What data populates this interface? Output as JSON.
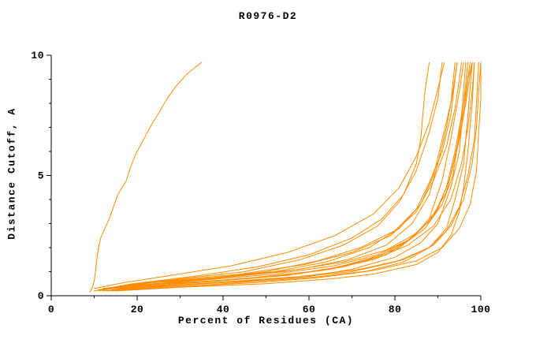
{
  "page": {
    "background": "#ffffff"
  },
  "chart_data": {
    "type": "line",
    "title": "R0976-D2",
    "xlabel": "Percent of Residues (CA)",
    "ylabel": "Distance Cutoff, A",
    "xlim": [
      0,
      100
    ],
    "ylim": [
      0,
      10
    ],
    "x_major_ticks": [
      0,
      20,
      40,
      60,
      80,
      100
    ],
    "x_minor_ticks": [
      10,
      30,
      50,
      70,
      90
    ],
    "y_major_ticks": [
      0,
      5,
      10
    ],
    "y_minor_ticks": [
      1,
      2,
      3,
      4,
      6,
      7,
      8,
      9
    ],
    "grid": false,
    "legend": "none",
    "line_color": "#ff8c00",
    "axis_color": "#000000",
    "series": [
      {
        "points": [
          [
            9,
            0.15
          ],
          [
            9.5,
            0.3
          ],
          [
            10,
            0.6
          ],
          [
            10.3,
            1.0
          ],
          [
            10.6,
            1.5
          ],
          [
            11,
            2.0
          ],
          [
            11.5,
            2.4
          ],
          [
            12,
            2.6
          ],
          [
            12.5,
            2.8
          ],
          [
            13.5,
            3.2
          ],
          [
            14.5,
            3.7
          ],
          [
            15.5,
            4.2
          ],
          [
            16.5,
            4.5
          ],
          [
            17.5,
            4.8
          ],
          [
            18,
            5.1
          ],
          [
            19,
            5.6
          ],
          [
            20,
            6.0
          ],
          [
            21.5,
            6.5
          ],
          [
            23,
            7.0
          ],
          [
            25,
            7.6
          ],
          [
            27,
            8.2
          ],
          [
            29,
            8.7
          ],
          [
            31.5,
            9.2
          ],
          [
            33.5,
            9.5
          ],
          [
            35,
            9.7
          ]
        ]
      },
      {
        "points": [
          [
            11,
            0.25
          ],
          [
            19,
            0.5
          ],
          [
            33,
            0.8
          ],
          [
            48,
            1.2
          ],
          [
            60,
            1.7
          ],
          [
            70,
            2.4
          ],
          [
            77,
            3.2
          ],
          [
            82,
            4.2
          ],
          [
            85,
            5.5
          ],
          [
            86,
            6.5
          ],
          [
            86.5,
            7.5
          ],
          [
            87,
            8.5
          ],
          [
            88,
            9.7
          ]
        ]
      },
      {
        "points": [
          [
            10,
            0.2
          ],
          [
            18,
            0.45
          ],
          [
            30,
            0.7
          ],
          [
            45,
            1.0
          ],
          [
            58,
            1.5
          ],
          [
            68,
            2.1
          ],
          [
            76,
            2.9
          ],
          [
            81,
            3.9
          ],
          [
            85,
            5.2
          ],
          [
            88,
            6.8
          ],
          [
            90,
            8.2
          ],
          [
            91,
            9.7
          ]
        ]
      },
      {
        "points": [
          [
            10,
            0.3
          ],
          [
            17,
            0.55
          ],
          [
            28,
            0.85
          ],
          [
            42,
            1.25
          ],
          [
            55,
            1.8
          ],
          [
            66,
            2.5
          ],
          [
            75,
            3.4
          ],
          [
            81,
            4.5
          ],
          [
            85,
            5.8
          ],
          [
            88,
            7.2
          ],
          [
            90,
            8.6
          ],
          [
            91.5,
            9.7
          ]
        ]
      },
      {
        "points": [
          [
            11,
            0.2
          ],
          [
            20,
            0.5
          ],
          [
            35,
            0.7
          ],
          [
            52,
            1.0
          ],
          [
            64,
            1.4
          ],
          [
            74,
            2.0
          ],
          [
            81,
            2.8
          ],
          [
            86,
            3.8
          ],
          [
            89,
            5.0
          ],
          [
            91,
            6.5
          ],
          [
            93,
            8.0
          ],
          [
            94,
            9.7
          ]
        ]
      },
      {
        "points": [
          [
            11,
            0.25
          ],
          [
            21,
            0.45
          ],
          [
            36,
            0.7
          ],
          [
            50,
            1.0
          ],
          [
            62,
            1.45
          ],
          [
            72,
            2.0
          ],
          [
            80,
            2.7
          ],
          [
            85,
            3.6
          ],
          [
            88,
            4.7
          ],
          [
            91,
            6.0
          ],
          [
            93,
            7.5
          ],
          [
            94,
            9.0
          ],
          [
            94.5,
            9.7
          ]
        ]
      },
      {
        "points": [
          [
            12,
            0.3
          ],
          [
            24,
            0.55
          ],
          [
            42,
            0.8
          ],
          [
            58,
            1.1
          ],
          [
            69,
            1.5
          ],
          [
            78,
            2.1
          ],
          [
            84,
            3.0
          ],
          [
            88,
            4.2
          ],
          [
            90,
            5.5
          ],
          [
            92,
            7.0
          ],
          [
            93.5,
            8.5
          ],
          [
            94.5,
            9.7
          ]
        ]
      },
      {
        "points": [
          [
            12,
            0.2
          ],
          [
            23,
            0.4
          ],
          [
            38,
            0.6
          ],
          [
            55,
            0.85
          ],
          [
            67,
            1.2
          ],
          [
            77,
            1.7
          ],
          [
            84,
            2.4
          ],
          [
            89,
            3.3
          ],
          [
            92,
            4.5
          ],
          [
            94,
            6.0
          ],
          [
            95.5,
            7.5
          ],
          [
            96.5,
            9.7
          ]
        ]
      },
      {
        "points": [
          [
            12,
            0.25
          ],
          [
            22,
            0.45
          ],
          [
            40,
            0.65
          ],
          [
            57,
            0.9
          ],
          [
            68,
            1.2
          ],
          [
            78,
            1.7
          ],
          [
            84,
            2.4
          ],
          [
            88,
            3.2
          ],
          [
            91,
            4.8
          ],
          [
            93,
            6.5
          ],
          [
            95,
            8.5
          ],
          [
            96,
            9.7
          ]
        ]
      },
      {
        "points": [
          [
            13,
            0.2
          ],
          [
            25,
            0.4
          ],
          [
            45,
            0.6
          ],
          [
            60,
            0.8
          ],
          [
            70,
            1.1
          ],
          [
            80,
            1.6
          ],
          [
            86,
            2.2
          ],
          [
            90,
            3.0
          ],
          [
            93,
            4.5
          ],
          [
            95,
            6.0
          ],
          [
            96,
            8.0
          ],
          [
            97,
            9.7
          ]
        ]
      },
      {
        "points": [
          [
            13,
            0.3
          ],
          [
            26,
            0.6
          ],
          [
            44,
            0.9
          ],
          [
            59,
            1.3
          ],
          [
            70,
            1.8
          ],
          [
            79,
            2.5
          ],
          [
            85,
            3.5
          ],
          [
            89,
            4.8
          ],
          [
            92,
            6.2
          ],
          [
            94,
            7.8
          ],
          [
            95,
            9.0
          ],
          [
            95.5,
            9.7
          ]
        ]
      },
      {
        "points": [
          [
            14,
            0.2
          ],
          [
            28,
            0.35
          ],
          [
            48,
            0.55
          ],
          [
            62,
            0.75
          ],
          [
            73,
            1.0
          ],
          [
            82,
            1.4
          ],
          [
            88,
            2.0
          ],
          [
            92,
            2.8
          ],
          [
            94,
            4.0
          ],
          [
            96,
            5.5
          ],
          [
            97,
            7.5
          ],
          [
            98,
            9.7
          ]
        ]
      },
      {
        "points": [
          [
            14,
            0.25
          ],
          [
            29,
            0.5
          ],
          [
            47,
            0.75
          ],
          [
            63,
            1.05
          ],
          [
            73,
            1.45
          ],
          [
            81,
            2.0
          ],
          [
            87,
            2.8
          ],
          [
            91,
            3.8
          ],
          [
            93.5,
            5.0
          ],
          [
            95,
            6.8
          ],
          [
            96.5,
            8.5
          ],
          [
            97.5,
            9.7
          ]
        ]
      },
      {
        "points": [
          [
            15,
            0.2
          ],
          [
            30,
            0.35
          ],
          [
            50,
            0.5
          ],
          [
            65,
            0.7
          ],
          [
            75,
            0.9
          ],
          [
            85,
            1.3
          ],
          [
            90,
            1.8
          ],
          [
            93,
            2.5
          ],
          [
            95,
            3.5
          ],
          [
            96,
            4.5
          ],
          [
            97,
            6.0
          ],
          [
            98,
            8.0
          ],
          [
            98.5,
            9.7
          ]
        ]
      },
      {
        "points": [
          [
            15,
            0.3
          ],
          [
            32,
            0.6
          ],
          [
            52,
            0.9
          ],
          [
            66,
            1.25
          ],
          [
            76,
            1.7
          ],
          [
            83,
            2.3
          ],
          [
            88,
            3.1
          ],
          [
            92,
            4.3
          ],
          [
            94,
            5.8
          ],
          [
            96,
            7.5
          ],
          [
            97,
            9.0
          ],
          [
            98,
            9.7
          ]
        ]
      },
      {
        "points": [
          [
            16,
            0.3
          ],
          [
            33,
            0.55
          ],
          [
            51,
            0.8
          ],
          [
            65,
            1.1
          ],
          [
            75,
            1.5
          ],
          [
            83,
            2.1
          ],
          [
            89,
            2.9
          ],
          [
            93,
            4.0
          ],
          [
            95.5,
            5.5
          ],
          [
            97,
            7.0
          ],
          [
            98,
            8.5
          ],
          [
            98.5,
            9.7
          ]
        ]
      },
      {
        "points": [
          [
            16,
            0.35
          ],
          [
            34,
            0.65
          ],
          [
            54,
            1.0
          ],
          [
            68,
            1.4
          ],
          [
            78,
            1.9
          ],
          [
            85,
            2.6
          ],
          [
            90,
            3.6
          ],
          [
            93,
            5.0
          ],
          [
            95,
            6.5
          ],
          [
            96.5,
            8.0
          ],
          [
            97.5,
            9.2
          ],
          [
            98,
            9.7
          ]
        ]
      },
      {
        "points": [
          [
            17,
            0.25
          ],
          [
            36,
            0.5
          ],
          [
            56,
            0.75
          ],
          [
            70,
            1.0
          ],
          [
            80,
            1.4
          ],
          [
            88,
            2.0
          ],
          [
            92,
            2.7
          ],
          [
            95,
            3.7
          ],
          [
            97,
            5.0
          ],
          [
            98.5,
            6.5
          ],
          [
            99,
            8.0
          ],
          [
            99.5,
            9.7
          ]
        ]
      },
      {
        "points": [
          [
            18,
            0.3
          ],
          [
            38,
            0.55
          ],
          [
            58,
            0.8
          ],
          [
            72,
            1.1
          ],
          [
            82,
            1.5
          ],
          [
            89,
            2.1
          ],
          [
            93,
            2.9
          ],
          [
            96,
            4.0
          ],
          [
            98,
            5.5
          ],
          [
            99,
            7.0
          ],
          [
            99.5,
            8.5
          ],
          [
            100,
            9.7
          ]
        ]
      },
      {
        "points": [
          [
            20,
            0.25
          ],
          [
            40,
            0.5
          ],
          [
            60,
            0.75
          ],
          [
            75,
            1.05
          ],
          [
            85,
            1.45
          ],
          [
            91,
            2.0
          ],
          [
            95,
            2.8
          ],
          [
            97.5,
            3.8
          ],
          [
            99,
            5.2
          ],
          [
            99.5,
            6.8
          ],
          [
            100,
            8.2
          ],
          [
            100,
            9.7
          ]
        ]
      }
    ]
  }
}
